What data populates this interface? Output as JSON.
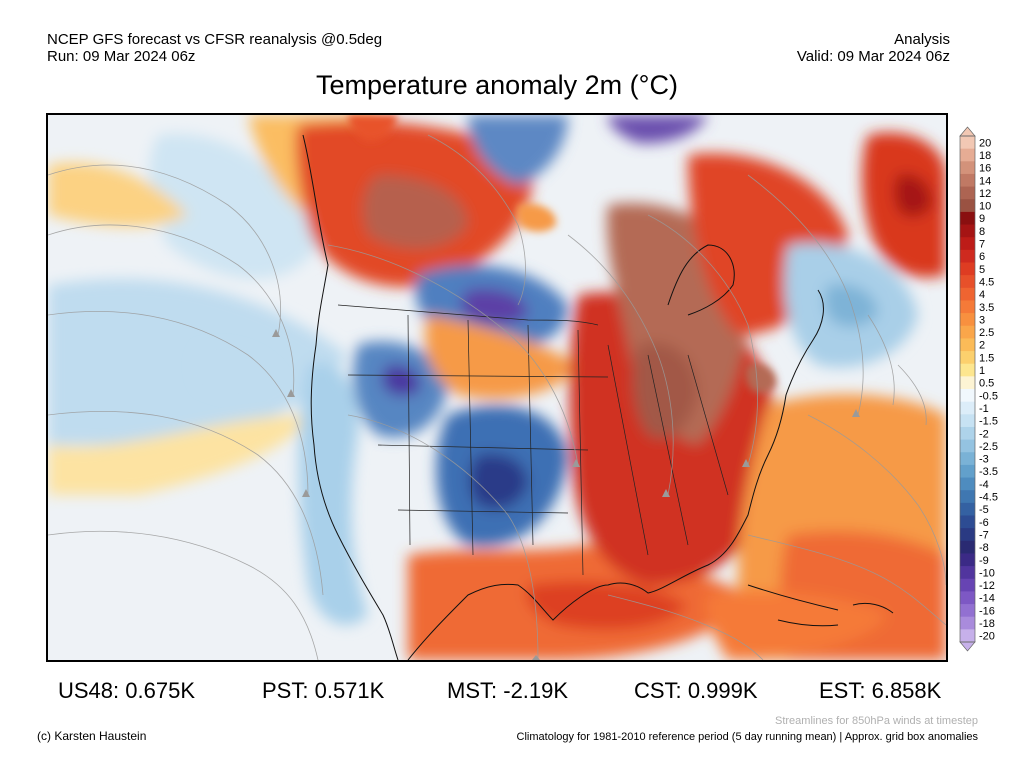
{
  "header": {
    "line1_left": "NCEP GFS forecast vs CFSR reanalysis @0.5deg",
    "line2_left": "Run: 09 Mar 2024 06z",
    "line1_right": "Analysis",
    "line2_right": "Valid: 09 Mar 2024 06z"
  },
  "map": {
    "title": "Temperature anomaly 2m (°C)",
    "region": "North America"
  },
  "legend": {
    "levels": [
      "20",
      "18",
      "16",
      "14",
      "12",
      "10",
      "9",
      "8",
      "7",
      "6",
      "5",
      "4.5",
      "4",
      "3.5",
      "3",
      "2.5",
      "2",
      "1.5",
      "1",
      "0.5",
      "-0.5",
      "-1",
      "-1.5",
      "-2",
      "-2.5",
      "-3",
      "-3.5",
      "-4",
      "-4.5",
      "-5",
      "-6",
      "-7",
      "-8",
      "-9",
      "-10",
      "-12",
      "-14",
      "-16",
      "-18",
      "-20"
    ],
    "colors": [
      "#f2c8b4",
      "#e6ac94",
      "#d3927a",
      "#c07964",
      "#ad6452",
      "#9a5242",
      "#8a0f10",
      "#a51414",
      "#bd1c18",
      "#cf2a1f",
      "#de3c22",
      "#e7502a",
      "#ef6431",
      "#f57a38",
      "#f8903f",
      "#faa64a",
      "#fbbb58",
      "#fcd06d",
      "#fde68f",
      "#fdf4d4",
      "#f1f8fd",
      "#dcedf9",
      "#c7e2f3",
      "#aed3ea",
      "#94c3e1",
      "#7ab2d6",
      "#62a0cb",
      "#4e8cbf",
      "#3f77b1",
      "#3461a2",
      "#2d4c93",
      "#2a3a83",
      "#2a2a72",
      "#3b2a86",
      "#51359e",
      "#6744b3",
      "#7d58c4",
      "#9270d1",
      "#a98bdc",
      "#c6b0ea"
    ]
  },
  "stats": [
    {
      "label": "US48:",
      "value": "0.675K"
    },
    {
      "label": "PST:",
      "value": "0.571K"
    },
    {
      "label": "MST:",
      "value": "-2.19K"
    },
    {
      "label": "CST:",
      "value": "0.999K"
    },
    {
      "label": "EST:",
      "value": "6.858K"
    }
  ],
  "footer": {
    "streamlines_note": "Streamlines for 850hPa winds at timestep",
    "credit": "(c) Karsten Haustein",
    "climatology_note": "Climatology for 1981-2010 reference period (5 day running mean) | Approx. grid box anomalies"
  }
}
